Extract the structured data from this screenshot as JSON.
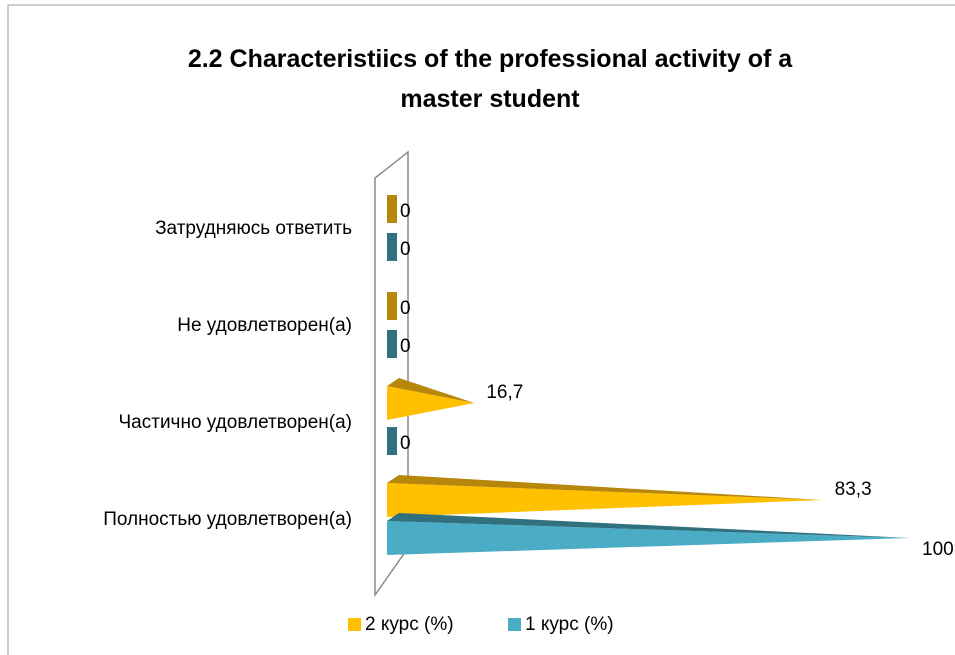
{
  "chart_data": {
    "type": "bar",
    "orientation": "horizontal",
    "shape": "pyramid",
    "title": "2.2 Characteristiics of the professional activity of a master student",
    "categories": [
      "Полностью удовлетворен(а)",
      "Частично удовлетворен(а)",
      "Не удовлетворен(а)",
      "Затрудняюсь ответить"
    ],
    "series": [
      {
        "name": "2 курс (%)",
        "color": "#ffc000",
        "shade": "#b8860b",
        "values": [
          83.3,
          16.7,
          0,
          0
        ],
        "value_labels": [
          "83,3",
          "16,7",
          "0",
          "0"
        ]
      },
      {
        "name": "1 курс (%)",
        "color": "#4bacc6",
        "shade": "#31707f",
        "values": [
          100,
          0,
          0,
          0
        ],
        "value_labels": [
          "100",
          "0",
          "0",
          "0"
        ]
      }
    ],
    "xlim": [
      0,
      100
    ],
    "legend": "bottom"
  }
}
